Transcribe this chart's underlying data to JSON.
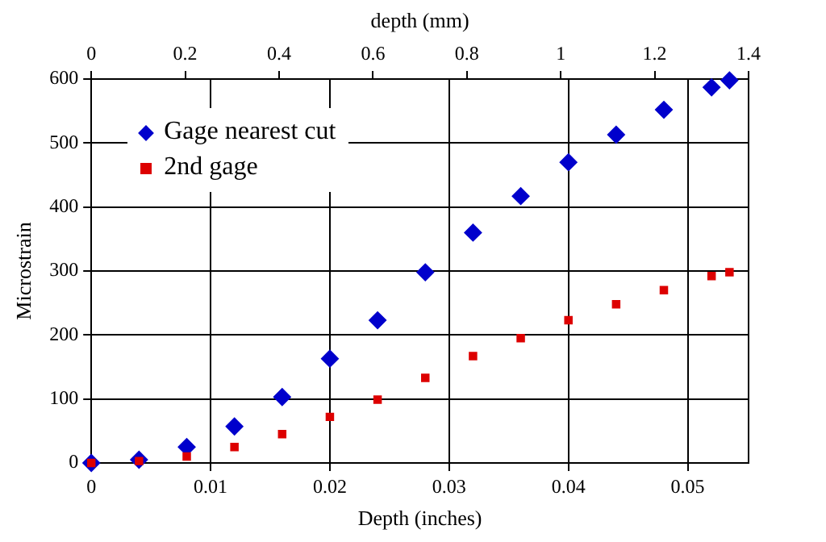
{
  "chart_data": {
    "type": "scatter",
    "xlabel": "Depth (inches)",
    "x2label": "depth (mm)",
    "ylabel": "Microstrain",
    "x": [
      0,
      0.004,
      0.008,
      0.012,
      0.016,
      0.02,
      0.024,
      0.028,
      0.032,
      0.036,
      0.04,
      0.044,
      0.048,
      0.052,
      0.0535
    ],
    "series": [
      {
        "name": "Gage nearest cut",
        "color": "#0000cc",
        "marker": "diamond",
        "values": [
          0,
          5,
          25,
          57,
          103,
          163,
          223,
          298,
          360,
          417,
          470,
          513,
          552,
          587,
          598
        ]
      },
      {
        "name": "2nd gage",
        "color": "#dd0000",
        "marker": "square",
        "values": [
          0,
          3,
          10,
          25,
          45,
          72,
          99,
          133,
          167,
          195,
          223,
          248,
          270,
          292,
          298
        ]
      }
    ],
    "xlim": [
      0,
      0.0551
    ],
    "xticks": [
      0,
      0.01,
      0.02,
      0.03,
      0.04,
      0.05
    ],
    "x2lim": [
      0,
      1.4
    ],
    "x2ticks": [
      0,
      0.2,
      0.4,
      0.6,
      0.8,
      1,
      1.2,
      1.4
    ],
    "ylim": [
      0,
      600
    ],
    "yticks": [
      0,
      100,
      200,
      300,
      400,
      500,
      600
    ],
    "grid": true,
    "legend": "top left"
  }
}
